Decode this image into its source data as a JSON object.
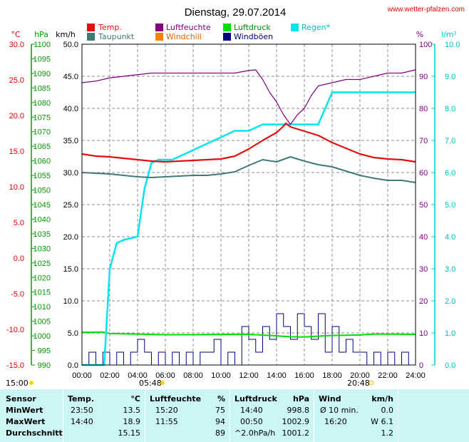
{
  "header": {
    "title": "Dienstag, 29.07.2014",
    "source": "www.wetter-pfalzen.com"
  },
  "colors": {
    "temp": "#e01010",
    "dew": "#3f7a78",
    "humidity": "#800080",
    "pressure": "#00dd00",
    "rain": "#00e5ee",
    "windchill": "#ff8000",
    "gust": "#000080",
    "celsius_axis": "#e00000",
    "hpa_axis": "#00a000",
    "pct_axis": "#800080",
    "rain_axis": "#00c8c8",
    "table_bg": "#ccf5f5"
  },
  "axes": {
    "units": {
      "celsius": "°C",
      "hpa": "hPa",
      "kmh": "km/h",
      "percent": "%",
      "rain": "l/m²"
    },
    "celsius_ticks": [
      "30.0",
      "25.0",
      "20.0",
      "15.0",
      "10.0",
      "5.0",
      "0.0",
      "-5.0",
      "-10.0",
      "-15.0"
    ],
    "hpa_ticks": [
      "1100",
      "1095",
      "1090",
      "1085",
      "1080",
      "1075",
      "1070",
      "1065",
      "1060",
      "1055",
      "1050",
      "1045",
      "1040",
      "1035",
      "1030",
      "1025",
      "1020",
      "1015",
      "1010",
      "1005",
      "1000",
      "995",
      "990"
    ],
    "kmh_ticks": [
      "50.0",
      "45.0",
      "40.0",
      "35.0",
      "30.0",
      "25.0",
      "20.0",
      "15.0",
      "10.0",
      "5.0",
      "0.0"
    ],
    "pct_ticks": [
      "100",
      "90",
      "80",
      "70",
      "60",
      "50",
      "40",
      "30",
      "20",
      "10",
      "0"
    ],
    "rain_ticks": [
      "10.0",
      "9.0",
      "8.0",
      "7.0",
      "6.0",
      "5.0",
      "4.0",
      "3.0",
      "2.0",
      "1.0",
      "0.0"
    ],
    "time_ticks": [
      "00:00",
      "02:00",
      "04:00",
      "06:00",
      "08:00",
      "10:00",
      "12:00",
      "14:00",
      "16:00",
      "18:00",
      "20:00",
      "22:00",
      "24:00"
    ],
    "sunrise_label": "05:48",
    "sunset_label": "20:48",
    "start_label": "15:00"
  },
  "chart_data": {
    "type": "line",
    "x_unit": "hour",
    "xlim": [
      0,
      24
    ],
    "legend": [
      "Temp.",
      "Luftfeuchte",
      "Luftdruck",
      "Regen*",
      "Taupunkt",
      "Windchill",
      "Windböen"
    ],
    "series": [
      {
        "name": "Temp.",
        "axis": "celsius",
        "color": "#e01010",
        "x": [
          0,
          1,
          2,
          3,
          4,
          5,
          6,
          7,
          8,
          9,
          10,
          11,
          12,
          13,
          14,
          14.5,
          14.67,
          15,
          16,
          17,
          18,
          19,
          20,
          21,
          22,
          23,
          24
        ],
        "y": [
          14.6,
          14.3,
          14.2,
          14.0,
          13.8,
          13.6,
          13.5,
          13.6,
          13.7,
          13.8,
          13.9,
          14.3,
          15.3,
          16.5,
          17.6,
          18.5,
          18.9,
          18.4,
          17.8,
          17.2,
          16.2,
          15.4,
          14.6,
          14.1,
          13.9,
          13.8,
          13.5
        ]
      },
      {
        "name": "Taupunkt",
        "axis": "celsius",
        "color": "#3f7a78",
        "x": [
          0,
          1,
          2,
          3,
          4,
          5,
          6,
          7,
          8,
          9,
          10,
          11,
          12,
          13,
          14,
          15,
          16,
          17,
          18,
          19,
          20,
          21,
          22,
          23,
          24
        ],
        "y": [
          12.0,
          11.9,
          11.8,
          11.6,
          11.4,
          11.3,
          11.4,
          11.5,
          11.6,
          11.6,
          11.8,
          12.1,
          13.0,
          13.8,
          13.5,
          14.2,
          13.6,
          13.1,
          12.8,
          12.2,
          11.6,
          11.2,
          10.9,
          10.9,
          10.6
        ]
      },
      {
        "name": "Luftfeuchte",
        "axis": "percent",
        "color": "#800080",
        "x": [
          0,
          1,
          2,
          3,
          4,
          5,
          6,
          7,
          8,
          9,
          10,
          11,
          12,
          12.5,
          13,
          13.5,
          14,
          14.5,
          15,
          15.5,
          16,
          16.5,
          17,
          18,
          19,
          20,
          21,
          22,
          23,
          24
        ],
        "y": [
          88,
          88.5,
          89.5,
          90,
          90.5,
          91,
          91,
          91,
          91,
          91,
          91,
          91,
          91.8,
          92,
          89,
          85,
          82,
          78,
          75,
          78,
          80,
          84,
          87,
          88,
          89,
          89,
          90,
          91,
          91,
          92
        ]
      },
      {
        "name": "Luftdruck",
        "axis": "hpa",
        "color": "#00dd00",
        "x": [
          0,
          1.5,
          2,
          4,
          6,
          8,
          10,
          12,
          14,
          15,
          16,
          17,
          18,
          20,
          21,
          22,
          24
        ],
        "y": [
          1001.2,
          1001.3,
          1000.8,
          1000.6,
          1000.4,
          1000.4,
          1000.5,
          1000.5,
          1000.0,
          999.7,
          999.6,
          999.9,
          1000.1,
          1000.3,
          1000.6,
          1000.6,
          1000.5
        ]
      },
      {
        "name": "Regen*",
        "axis": "rain",
        "color": "#00e5ee",
        "x": [
          0,
          1.6,
          2,
          2.5,
          3,
          4,
          4.5,
          5,
          5.5,
          6,
          6.5,
          7,
          8,
          9,
          10,
          11,
          12,
          13,
          14,
          15,
          16,
          17,
          17.5,
          18,
          24
        ],
        "y": [
          0,
          0,
          3.0,
          3.8,
          3.9,
          4.0,
          5.5,
          6.3,
          6.4,
          6.4,
          6.4,
          6.5,
          6.7,
          6.9,
          7.1,
          7.3,
          7.3,
          7.5,
          7.5,
          7.5,
          7.5,
          7.5,
          8.0,
          8.5,
          8.5
        ]
      },
      {
        "name": "Windböen",
        "axis": "kmh",
        "color": "#000080",
        "x": [
          0,
          0.5,
          1,
          1.5,
          2,
          2.5,
          3,
          3.5,
          4,
          4.5,
          5,
          5.5,
          6,
          6.5,
          7,
          7.5,
          8,
          8.5,
          9,
          9.5,
          10,
          10.5,
          11,
          11.5,
          12,
          12.5,
          13,
          13.5,
          14,
          14.5,
          15,
          15.5,
          16,
          16.5,
          17,
          17.5,
          18,
          18.5,
          19,
          19.5,
          20,
          20.5,
          21,
          21.5,
          22,
          22.5,
          23,
          23.5,
          24
        ],
        "y": [
          0,
          2,
          0,
          2,
          0,
          2,
          0,
          2,
          4,
          2,
          0,
          2,
          0,
          2,
          0,
          2,
          0,
          2,
          2,
          4,
          0,
          2,
          0,
          6,
          4,
          2,
          6,
          4,
          8,
          6,
          4,
          8,
          6,
          4,
          8,
          2,
          6,
          2,
          4,
          2,
          2,
          0,
          2,
          0,
          2,
          0,
          2,
          0,
          2
        ]
      },
      {
        "name": "Windchill",
        "axis": "celsius",
        "color": "#ff8000",
        "x": [],
        "y": []
      }
    ]
  },
  "summary": {
    "headers": {
      "sensor": "Sensor",
      "temp": "Temp.",
      "temp_unit": "°C",
      "hum": "Luftfeuchte",
      "hum_unit": "%",
      "press": "Luftdruck",
      "press_unit": "hPa",
      "wind": "Wind",
      "wind_unit": "km/h"
    },
    "rows": [
      {
        "label": "MinWert",
        "temp_time": "23:50",
        "temp_val": "13.5",
        "hum_time": "15:20",
        "hum_val": "75",
        "press_time": "14:40",
        "press_val": "998.8",
        "wind_time": "Ø 10 min.",
        "wind_val": "0.0"
      },
      {
        "label": "MaxWert",
        "temp_time": "14:40",
        "temp_val": "18.9",
        "hum_time": "11:55",
        "hum_val": "94",
        "press_time": "00:50",
        "press_val": "1002.9",
        "wind_time": "16:20",
        "wind_val": "W 6.1"
      },
      {
        "label": "Durchschnitt",
        "temp_time": "",
        "temp_val": "15.15",
        "hum_time": "",
        "hum_val": "89",
        "press_time": "^2.0hPa/h",
        "press_val": "1001.2",
        "wind_time": "",
        "wind_val": "1.2"
      }
    ]
  }
}
